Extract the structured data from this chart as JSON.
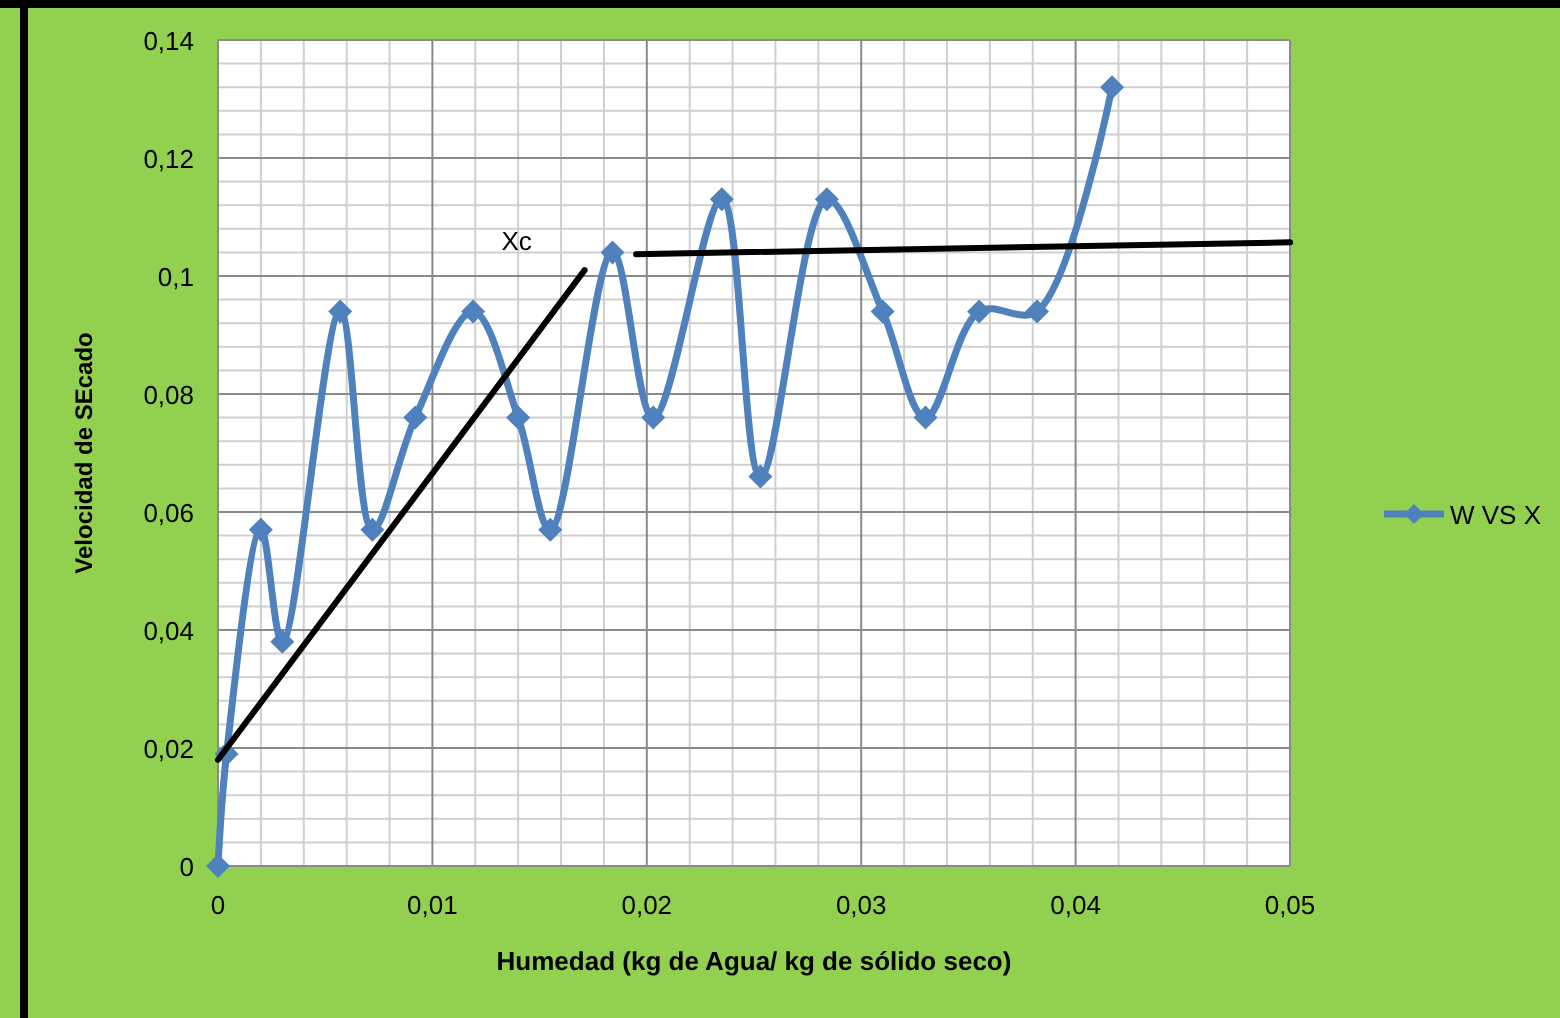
{
  "chart_data": {
    "type": "line",
    "xlabel": "Humedad (kg de Agua/ kg de sólido seco)",
    "ylabel": "Velocidad de SEcado",
    "xlim": [
      0,
      0.05
    ],
    "xticks": [
      {
        "value": 0,
        "label": "0"
      },
      {
        "value": 0.01,
        "label": "0,01"
      },
      {
        "value": 0.02,
        "label": "0,02"
      },
      {
        "value": 0.03,
        "label": "0,03"
      },
      {
        "value": 0.04,
        "label": "0,04"
      },
      {
        "value": 0.05,
        "label": "0,05"
      }
    ],
    "ylim": [
      0,
      0.14
    ],
    "yticks": [
      {
        "value": 0,
        "label": "0"
      },
      {
        "value": 0.02,
        "label": "0,02"
      },
      {
        "value": 0.04,
        "label": "0,04"
      },
      {
        "value": 0.06,
        "label": "0,06"
      },
      {
        "value": 0.08,
        "label": "0,08"
      },
      {
        "value": 0.1,
        "label": "0,1"
      },
      {
        "value": 0.12,
        "label": "0,12"
      },
      {
        "value": 0.14,
        "label": "0,14"
      }
    ],
    "grid": true,
    "legend": "right",
    "marker": "diamond",
    "series": [
      {
        "name": "W VS X",
        "color": "#4f81bd",
        "x": [
          0,
          0.0004,
          0.002,
          0.003,
          0.0057,
          0.0072,
          0.0092,
          0.0119,
          0.014,
          0.0155,
          0.0184,
          0.0203,
          0.0235,
          0.0253,
          0.0284,
          0.031,
          0.033,
          0.0355,
          0.0382,
          0.0417
        ],
        "values": [
          0,
          0.019,
          0.057,
          0.038,
          0.094,
          0.057,
          0.076,
          0.094,
          0.076,
          0.057,
          0.104,
          0.076,
          0.113,
          0.066,
          0.113,
          0.094,
          0.076,
          0.094,
          0.094,
          0.132
        ]
      },
      {
        "type": "line",
        "color": "#000000",
        "marker": "none",
        "x": [
          0,
          0.0171
        ],
        "values": [
          0.018,
          0.101
        ]
      },
      {
        "type": "line",
        "color": "#000000",
        "marker": "none",
        "x": [
          0.0195,
          0.05
        ],
        "values": [
          0.1037,
          0.1057
        ]
      }
    ],
    "annotations": [
      "Xc"
    ]
  }
}
